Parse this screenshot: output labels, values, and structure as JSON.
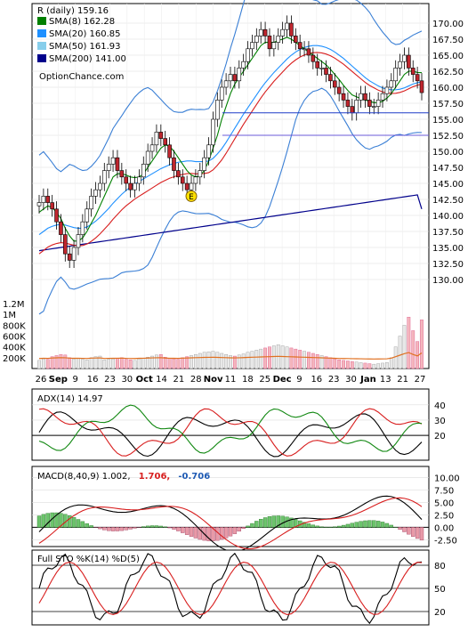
{
  "chart_data": {
    "type": "line",
    "title": "R (daily) 159.16",
    "watermark": "OptionChance.com",
    "x_tick_labels": [
      "26",
      "Sep",
      "9",
      "16",
      "23",
      "30",
      "Oct",
      "14",
      "21",
      "28",
      "Nov",
      "11",
      "18",
      "25",
      "Dec",
      "9",
      "16",
      "23",
      "30",
      "Jan",
      "13",
      "21",
      "27"
    ],
    "price": {
      "ylim": [
        127.5,
        172.5
      ],
      "y_ticks": [
        "170.00",
        "167.50",
        "165.00",
        "162.50",
        "160.00",
        "157.50",
        "155.00",
        "152.50",
        "150.00",
        "147.50",
        "145.00",
        "142.50",
        "140.00",
        "137.50",
        "135.00",
        "132.50",
        "130.00"
      ],
      "legend": [
        {
          "label": "SMA(8) 162.28",
          "color": "#008000"
        },
        {
          "label": "SMA(20) 160.85",
          "color": "#1e90ff"
        },
        {
          "label": "SMA(50) 161.93",
          "color": "#87ceeb"
        },
        {
          "label": "SMA(200) 141.00",
          "color": "#00008b"
        }
      ],
      "close": [
        142,
        143,
        142,
        141,
        139,
        137,
        134,
        133,
        135,
        137,
        139,
        141,
        143,
        144,
        145,
        147,
        148,
        149,
        147,
        146,
        145,
        144,
        145,
        146,
        148,
        150,
        151,
        153,
        152,
        151,
        149,
        147,
        146,
        145,
        144,
        145,
        146,
        147,
        149,
        151,
        155,
        158,
        160,
        161,
        162,
        161,
        163,
        164,
        166,
        167,
        168,
        169,
        168,
        166,
        167,
        168,
        169,
        170,
        168,
        167,
        166,
        166,
        165,
        164,
        163,
        163,
        162,
        161,
        160,
        159,
        158,
        157,
        156,
        158,
        159,
        158,
        157,
        157,
        158,
        159,
        160,
        161,
        163,
        164,
        165,
        163,
        162,
        161,
        159.16
      ],
      "sma8": [
        140.5,
        141,
        141.5,
        141.2,
        140.5,
        139.5,
        138,
        136.8,
        136,
        136,
        136.5,
        137.5,
        138.8,
        140,
        141.5,
        143,
        144.5,
        146,
        146.5,
        146.5,
        146.3,
        146,
        145.9,
        146,
        146.5,
        147.5,
        148.5,
        149.5,
        150.5,
        151,
        150.8,
        150,
        149,
        148,
        147,
        146.3,
        146,
        146.2,
        147,
        148.5,
        150.5,
        152.5,
        155,
        157,
        159,
        160.5,
        161.5,
        162.5,
        163.5,
        164.5,
        165.5,
        166.5,
        167,
        167,
        167,
        167.3,
        167.5,
        167.8,
        167.5,
        167,
        166.5,
        166,
        165.5,
        165,
        164.5,
        164,
        163.5,
        162.8,
        162,
        161.2,
        160.3,
        159.5,
        158.8,
        158.5,
        158.2,
        158,
        157.8,
        157.6,
        157.6,
        157.8,
        158.3,
        159,
        160,
        161,
        162,
        162.5,
        162.5,
        162.3,
        162.28
      ],
      "sma20": [
        137,
        137.5,
        138,
        138.3,
        138.5,
        138.6,
        138.5,
        138.3,
        138.1,
        138,
        138,
        138.2,
        138.6,
        139.1,
        139.7,
        140.4,
        141.1,
        141.9,
        142.6,
        143.3,
        143.9,
        144.4,
        144.9,
        145.3,
        145.7,
        146.1,
        146.5,
        146.9,
        147.3,
        147.6,
        147.9,
        148.1,
        148.3,
        148.4,
        148.5,
        148.5,
        148.4,
        148.4,
        148.4,
        148.5,
        148.9,
        149.6,
        150.4,
        151.4,
        152.5,
        153.6,
        154.7,
        155.8,
        156.8,
        157.8,
        158.8,
        159.8,
        160.7,
        161.5,
        162.3,
        163,
        163.7,
        164.4,
        165,
        165.5,
        165.9,
        166.2,
        166.4,
        166.5,
        166.5,
        166.4,
        166.2,
        165.9,
        165.5,
        165,
        164.5,
        163.9,
        163.3,
        162.7,
        162.1,
        161.5,
        161,
        160.6,
        160.2,
        159.9,
        159.7,
        159.6,
        159.6,
        159.7,
        159.9,
        160.2,
        160.5,
        160.7,
        160.85
      ],
      "sma200": [
        134.5,
        134.6,
        134.7,
        134.8,
        134.9,
        135,
        135.1,
        135.2,
        135.3,
        135.4,
        135.5,
        135.6,
        135.7,
        135.8,
        135.9,
        136,
        136.1,
        136.2,
        136.3,
        136.4,
        136.5,
        136.6,
        136.7,
        136.8,
        136.9,
        137,
        137.1,
        137.2,
        137.3,
        137.4,
        137.5,
        137.6,
        137.7,
        137.8,
        137.9,
        138,
        138.1,
        138.2,
        138.3,
        138.4,
        138.5,
        138.6,
        138.7,
        138.8,
        138.9,
        139,
        139.1,
        139.2,
        139.3,
        139.4,
        139.5,
        139.6,
        139.7,
        139.8,
        139.9,
        140,
        140.1,
        140.2,
        140.3,
        140.4,
        140.5,
        140.6,
        140.7,
        140.8,
        140.9,
        141,
        141.1,
        141.2,
        141.3,
        141.4,
        141.5,
        141.6,
        141.7,
        141.8,
        141.9,
        142,
        142.1,
        142.2,
        142.3,
        142.4,
        142.5,
        142.6,
        142.7,
        142.8,
        142.9,
        143,
        143.1,
        143.2,
        141
      ]
    },
    "volume": {
      "y_ticks": [
        "1.2M",
        "1M",
        "800K",
        "600K",
        "400K",
        "200K"
      ],
      "ylim": [
        0,
        1300000
      ],
      "values": [
        150,
        180,
        170,
        220,
        240,
        260,
        250,
        200,
        180,
        190,
        170,
        160,
        200,
        220,
        230,
        160,
        170,
        180,
        190,
        200,
        170,
        160,
        150,
        180,
        190,
        210,
        230,
        250,
        260,
        210,
        190,
        180,
        170,
        200,
        220,
        240,
        260,
        280,
        300,
        310,
        320,
        300,
        280,
        260,
        240,
        230,
        250,
        270,
        300,
        320,
        340,
        360,
        380,
        400,
        420,
        440,
        420,
        400,
        380,
        360,
        340,
        320,
        300,
        280,
        260,
        240,
        220,
        200,
        180,
        160,
        150,
        140,
        130,
        120,
        110,
        100,
        90,
        80,
        90,
        100,
        110,
        200,
        400,
        600,
        800,
        950,
        700,
        500,
        900
      ]
    },
    "adx": {
      "label": "ADX(14) 14.97",
      "y_ticks": [
        "40",
        "30",
        "20"
      ],
      "ylim": [
        5,
        48
      ]
    },
    "macd": {
      "label": "MACD(8,40,9) 1.002,",
      "signal": "1.706,",
      "hist": "-0.706",
      "y_ticks": [
        "10.00",
        "7.50",
        "5.00",
        "2.50",
        "0.00",
        "-2.50"
      ],
      "ylim": [
        -3.5,
        11.5
      ]
    },
    "stoch": {
      "label": "Full STO %K(14) %D(5)",
      "y_ticks": [
        "80",
        "50",
        "20"
      ],
      "ylim": [
        5,
        95
      ]
    }
  },
  "colors": {
    "up": "#ffffff",
    "down": "#c0262e",
    "sma8": "#008000",
    "sma20": "#1e90ff",
    "sma50": "#87ceeb",
    "sma200": "#00008b",
    "red": "#d81e1e",
    "bb": "#3a7fd5"
  }
}
